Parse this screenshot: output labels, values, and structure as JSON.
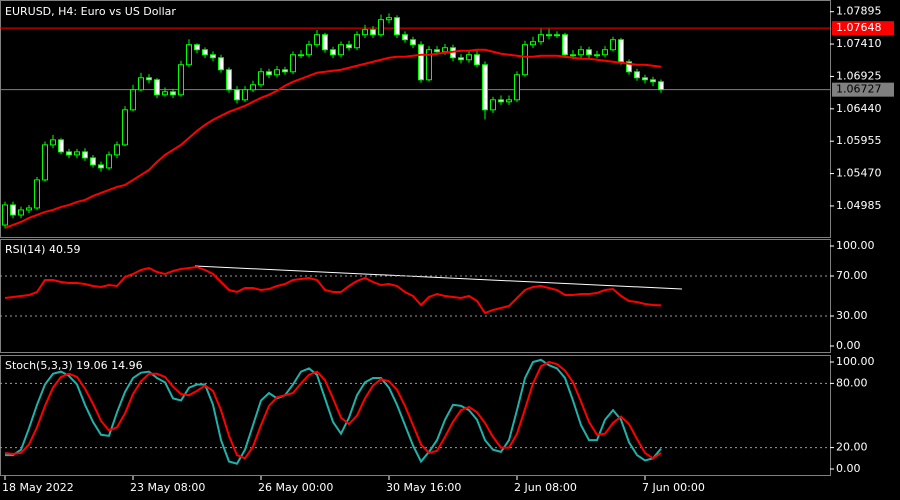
{
  "chart_data": [
    {
      "type": "candlestick",
      "title": "EURUSD, H4:  Euro vs US Dollar",
      "ylim": [
        1.0452,
        1.0804
      ],
      "yticks": [
        1.07895,
        {
          "value": 1.0741,
          "label": "1.07410"
        },
        1.06925,
        {
          "value": 1.0644,
          "label": "1.06440"
        },
        1.05955,
        {
          "value": 1.0547,
          "label": "1.05470"
        },
        1.04985
      ],
      "series": [
        {
          "type": "candlestick",
          "color": "#00ff00",
          "up_color": "#000000",
          "down_color": "#ffffff",
          "open": [
            1.047,
            1.05,
            1.0485,
            1.04925,
            1.04955,
            1.05375,
            1.059,
            1.05975,
            1.05795,
            1.0575,
            1.05795,
            1.05705,
            1.056,
            1.05555,
            1.0575,
            1.059,
            1.06425,
            1.06725,
            1.06905,
            1.06875,
            1.0665,
            1.06695,
            1.0665,
            1.071,
            1.074,
            1.07325,
            1.0725,
            1.07205,
            1.07025,
            1.06725,
            1.06575,
            1.06725,
            1.068,
            1.06995,
            1.0695,
            1.07025,
            1.06995,
            1.0725,
            1.0725,
            1.074,
            1.0755,
            1.07325,
            1.0725,
            1.074,
            1.07355,
            1.0755,
            1.07625,
            1.0755,
            1.07775,
            1.07805,
            1.0755,
            1.07475,
            1.074,
            1.06875,
            1.07325,
            1.07295,
            1.07355,
            1.07205,
            1.07175,
            1.0725,
            1.071,
            1.06425,
            1.06575,
            1.06545,
            1.06575,
            1.0695,
            1.074,
            1.07445,
            1.0755,
            1.0755,
            1.0755,
            1.0725,
            1.0725,
            1.07325,
            1.0725,
            1.0725,
            1.07325,
            1.07475,
            1.07145,
            1.06995,
            1.06905,
            1.06875,
            1.06845
          ],
          "high": [
            1.0505,
            1.0505,
            1.04975,
            1.05,
            1.0542,
            1.0595,
            1.0605,
            1.06,
            1.0584,
            1.0584,
            1.0585,
            1.0575,
            1.0565,
            1.058,
            1.0595,
            1.0648,
            1.068,
            1.0698,
            1.0696,
            1.069,
            1.0676,
            1.0674,
            1.0716,
            1.0748,
            1.0742,
            1.0736,
            1.073,
            1.0725,
            1.0706,
            1.0678,
            1.0678,
            1.0686,
            1.0705,
            1.0704,
            1.0708,
            1.0707,
            1.073,
            1.0732,
            1.0746,
            1.0762,
            1.0758,
            1.0737,
            1.0745,
            1.0746,
            1.076,
            1.077,
            1.0768,
            1.0785,
            1.0787,
            1.0784,
            1.076,
            1.0752,
            1.0745,
            1.0738,
            1.0738,
            1.0741,
            1.074,
            1.0726,
            1.073,
            1.0731,
            1.0715,
            1.0662,
            1.0664,
            1.0664,
            1.07,
            1.0746,
            1.0752,
            1.0764,
            1.0764,
            1.076,
            1.0758,
            1.0732,
            1.0738,
            1.0737,
            1.0731,
            1.0738,
            1.0752,
            1.075,
            1.0718,
            1.0704,
            1.0695,
            1.0692,
            1.0688
          ],
          "low": [
            1.0465,
            1.048,
            1.048,
            1.0488,
            1.0492,
            1.0535,
            1.0585,
            1.0576,
            1.057,
            1.057,
            1.0566,
            1.0556,
            1.055,
            1.0552,
            1.057,
            1.0588,
            1.064,
            1.067,
            1.0682,
            1.066,
            1.0662,
            1.066,
            1.0662,
            1.0706,
            1.0727,
            1.072,
            1.0715,
            1.0698,
            1.0668,
            1.0652,
            1.0654,
            1.0669,
            1.0676,
            1.069,
            1.0691,
            1.0695,
            1.0696,
            1.072,
            1.0721,
            1.0736,
            1.0728,
            1.072,
            1.0721,
            1.0731,
            1.0732,
            1.075,
            1.075,
            1.0752,
            1.0772,
            1.075,
            1.0743,
            1.0735,
            1.0683,
            1.0685,
            1.0725,
            1.0725,
            1.0715,
            1.0712,
            1.0713,
            1.0706,
            1.0628,
            1.0638,
            1.065,
            1.065,
            1.0654,
            1.0692,
            1.0735,
            1.074,
            1.0748,
            1.075,
            1.072,
            1.0718,
            1.072,
            1.072,
            1.072,
            1.0721,
            1.073,
            1.071,
            1.0695,
            1.0686,
            1.0682,
            1.0678,
            1.0668
          ],
          "close": [
            1.05,
            1.0485,
            1.04925,
            1.04955,
            1.05375,
            1.059,
            1.05975,
            1.05795,
            1.0575,
            1.05795,
            1.05705,
            1.056,
            1.05555,
            1.0575,
            1.059,
            1.06425,
            1.06725,
            1.06905,
            1.06875,
            1.0665,
            1.06695,
            1.0665,
            1.071,
            1.074,
            1.07325,
            1.0725,
            1.07205,
            1.07025,
            1.06725,
            1.06575,
            1.06725,
            1.068,
            1.06995,
            1.0695,
            1.07025,
            1.06995,
            1.0725,
            1.0725,
            1.074,
            1.0755,
            1.07325,
            1.0725,
            1.074,
            1.07355,
            1.0755,
            1.07625,
            1.0755,
            1.07775,
            1.07805,
            1.0755,
            1.07475,
            1.074,
            1.06875,
            1.07325,
            1.07295,
            1.07355,
            1.07205,
            1.07175,
            1.0725,
            1.071,
            1.06425,
            1.06575,
            1.06545,
            1.06575,
            1.0695,
            1.074,
            1.07445,
            1.0755,
            1.0755,
            1.0755,
            1.0725,
            1.0725,
            1.07325,
            1.0725,
            1.0725,
            1.07325,
            1.07475,
            1.07145,
            1.06995,
            1.06905,
            1.06875,
            1.06845,
            1.06727
          ]
        },
        {
          "type": "line",
          "color": "#ff0000",
          "values": [
            1.04655,
            1.047,
            1.04745,
            1.04805,
            1.0485,
            1.04895,
            1.04925,
            1.0497,
            1.05,
            1.05045,
            1.05075,
            1.05135,
            1.0518,
            1.05225,
            1.0527,
            1.053,
            1.05375,
            1.0545,
            1.05525,
            1.05645,
            1.0575,
            1.05825,
            1.059,
            1.06005,
            1.0611,
            1.062,
            1.06275,
            1.06335,
            1.06395,
            1.0644,
            1.06485,
            1.06545,
            1.06605,
            1.0665,
            1.0671,
            1.06785,
            1.06845,
            1.0689,
            1.06935,
            1.0698,
            1.06995,
            1.0701,
            1.07025,
            1.07055,
            1.07085,
            1.07115,
            1.07145,
            1.07175,
            1.07205,
            1.0722,
            1.0722,
            1.07235,
            1.0725,
            1.0725,
            1.07265,
            1.0728,
            1.07295,
            1.0731,
            1.0731,
            1.07325,
            1.07325,
            1.07295,
            1.07265,
            1.0725,
            1.07235,
            1.0722,
            1.0722,
            1.07235,
            1.07235,
            1.07235,
            1.0722,
            1.07205,
            1.0719,
            1.0719,
            1.07175,
            1.0716,
            1.07145,
            1.0713,
            1.07115,
            1.071,
            1.071,
            1.07085,
            1.0707
          ]
        }
      ],
      "hlines": [
        {
          "value": 1.07648,
          "color": "#ff0000"
        },
        {
          "value": 1.06727,
          "color": "#808080"
        }
      ]
    },
    {
      "type": "line",
      "title": "RSI(14) 40.59",
      "ylim": [
        -6,
        106
      ],
      "yticks": [
        {
          "value": 100,
          "label": "100.00"
        },
        {
          "value": 70,
          "label": "70.00"
        },
        {
          "value": 30,
          "label": "30.00"
        },
        {
          "value": 0,
          "label": "0.00"
        }
      ],
      "levels": [
        70,
        30
      ],
      "series": [
        {
          "color": "#ff0000",
          "values": [
            48,
            49,
            50,
            51,
            54,
            66,
            66,
            64,
            63,
            63,
            62,
            60,
            59,
            61,
            60,
            69,
            72,
            76,
            78,
            74,
            72,
            75,
            77,
            78,
            79,
            76,
            72,
            64,
            56,
            54,
            58,
            58,
            56,
            57,
            60,
            62,
            66,
            67,
            68,
            66,
            56,
            54,
            54,
            60,
            65,
            68,
            64,
            61,
            62,
            60,
            54,
            50,
            41,
            49,
            52,
            50,
            49,
            48,
            50,
            45,
            33,
            36,
            38,
            40,
            48,
            56,
            59,
            60,
            58,
            56,
            51,
            51,
            52,
            52,
            53,
            56,
            57,
            50,
            45,
            44,
            42,
            41,
            40.59
          ]
        }
      ]
    },
    {
      "type": "line",
      "title": "Stoch(5,3,3) 19.06 14.96",
      "ylim": [
        -5.6,
        105.6
      ],
      "yticks": [
        {
          "value": 100,
          "label": "100.00"
        },
        {
          "value": 80,
          "label": "80.00"
        },
        {
          "value": 20,
          "label": "20.00"
        },
        {
          "value": 0,
          "label": "0.00"
        }
      ],
      "levels": [
        80,
        20
      ],
      "categories": [
        "18 May 2022",
        null,
        null,
        null,
        null,
        null,
        null,
        null,
        null,
        null,
        null,
        null,
        null,
        null,
        null,
        null,
        "23 May 08:00",
        null,
        null,
        null,
        null,
        null,
        null,
        null,
        null,
        null,
        null,
        null,
        null,
        null,
        null,
        null,
        "26 May 00:00",
        null,
        null,
        null,
        null,
        null,
        null,
        null,
        null,
        null,
        null,
        null,
        null,
        null,
        null,
        null,
        "30 May 16:00",
        null,
        null,
        null,
        null,
        null,
        null,
        null,
        null,
        null,
        null,
        null,
        null,
        null,
        null,
        null,
        "2 Jun 08:00",
        null,
        null,
        null,
        null,
        null,
        null,
        null,
        null,
        null,
        null,
        null,
        null,
        null,
        null,
        null,
        "7 Jun 00:00",
        null,
        null
      ],
      "series": [
        {
          "color": "#20b2aa",
          "values": [
            13,
            13,
            18,
            38,
            60,
            79,
            89,
            91,
            87,
            79,
            60,
            44,
            32,
            31,
            53,
            72,
            85,
            90,
            91,
            85,
            81,
            66,
            64,
            76,
            79,
            79,
            60,
            27,
            7,
            5,
            18,
            41,
            64,
            71,
            66,
            69,
            79,
            91,
            94,
            88,
            66,
            44,
            33,
            48,
            69,
            81,
            85,
            85,
            76,
            60,
            41,
            22,
            7,
            16,
            27,
            46,
            60,
            59,
            55,
            46,
            27,
            18,
            16,
            27,
            55,
            85,
            100,
            102,
            97,
            94,
            85,
            64,
            41,
            27,
            27,
            46,
            55,
            46,
            25,
            13,
            8,
            10,
            19.06
          ]
        },
        {
          "color": "#ff0000",
          "values": [
            15,
            14,
            15,
            23,
            39,
            59,
            76,
            86,
            89,
            86,
            75,
            61,
            45,
            36,
            39,
            52,
            70,
            82,
            89,
            89,
            86,
            77,
            70,
            69,
            73,
            78,
            73,
            55,
            31,
            13,
            10,
            21,
            41,
            59,
            67,
            69,
            71,
            80,
            88,
            91,
            83,
            66,
            48,
            42,
            50,
            66,
            78,
            84,
            82,
            74,
            59,
            41,
            23,
            15,
            17,
            30,
            44,
            55,
            58,
            53,
            43,
            30,
            20,
            20,
            33,
            56,
            80,
            96,
            100,
            98,
            92,
            81,
            63,
            44,
            32,
            33,
            43,
            49,
            42,
            28,
            15,
            10,
            14.96
          ]
        }
      ]
    }
  ]
}
